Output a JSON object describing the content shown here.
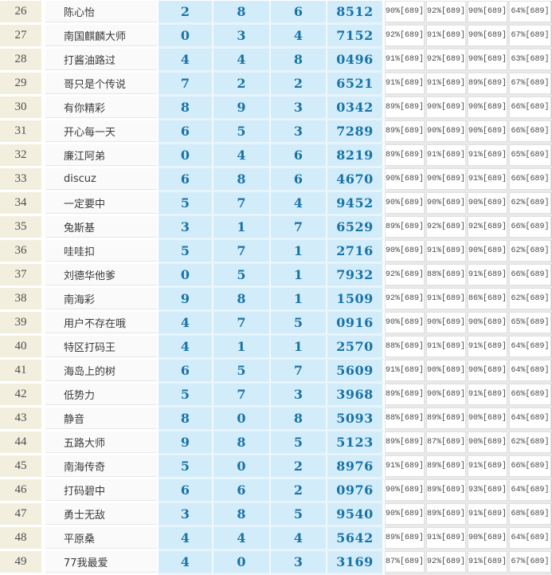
{
  "colors": {
    "accent_blue": "#1873a6",
    "cell_blue": "#d3ecfa",
    "rank_bg": "#f2efdf",
    "pct_text": "#4a4a4a",
    "grid_gray": "#e9e9e9"
  },
  "table": {
    "rows": [
      {
        "rank": "26",
        "name": "陈心怡",
        "nums": [
          "2",
          "8",
          "6"
        ],
        "code": "8512",
        "pcts": [
          "90%[689]",
          "92%[689]",
          "90%[689]",
          "64%[689]"
        ]
      },
      {
        "rank": "27",
        "name": "南国麒麟大师",
        "nums": [
          "0",
          "3",
          "4"
        ],
        "code": "7152",
        "pcts": [
          "92%[689]",
          "91%[689]",
          "90%[689]",
          "67%[689]"
        ]
      },
      {
        "rank": "28",
        "name": "打酱油路过",
        "nums": [
          "4",
          "4",
          "8"
        ],
        "code": "0496",
        "pcts": [
          "91%[689]",
          "92%[689]",
          "90%[689]",
          "63%[689]"
        ]
      },
      {
        "rank": "29",
        "name": "哥只是个传说",
        "nums": [
          "7",
          "2",
          "2"
        ],
        "code": "6521",
        "pcts": [
          "91%[689]",
          "91%[689]",
          "89%[689]",
          "67%[689]"
        ]
      },
      {
        "rank": "30",
        "name": "有你精彩",
        "nums": [
          "8",
          "9",
          "3"
        ],
        "code": "0342",
        "pcts": [
          "89%[689]",
          "90%[689]",
          "90%[689]",
          "66%[689]"
        ]
      },
      {
        "rank": "31",
        "name": "开心每一天",
        "nums": [
          "6",
          "5",
          "3"
        ],
        "code": "7289",
        "pcts": [
          "89%[689]",
          "90%[689]",
          "90%[689]",
          "66%[689]"
        ]
      },
      {
        "rank": "32",
        "name": "廉江阿弟",
        "nums": [
          "0",
          "4",
          "6"
        ],
        "code": "8219",
        "pcts": [
          "89%[689]",
          "91%[689]",
          "91%[689]",
          "65%[689]"
        ]
      },
      {
        "rank": "33",
        "name": "discuz",
        "nums": [
          "6",
          "8",
          "6"
        ],
        "code": "4670",
        "pcts": [
          "90%[689]",
          "90%[689]",
          "91%[689]",
          "66%[689]"
        ]
      },
      {
        "rank": "34",
        "name": "一定要中",
        "nums": [
          "5",
          "7",
          "4"
        ],
        "code": "9452",
        "pcts": [
          "90%[689]",
          "90%[689]",
          "90%[689]",
          "62%[689]"
        ]
      },
      {
        "rank": "35",
        "name": "兔斯基",
        "nums": [
          "3",
          "1",
          "7"
        ],
        "code": "6529",
        "pcts": [
          "89%[689]",
          "92%[689]",
          "92%[689]",
          "66%[689]"
        ]
      },
      {
        "rank": "36",
        "name": "哇哇扣",
        "nums": [
          "5",
          "7",
          "1"
        ],
        "code": "2716",
        "pcts": [
          "90%[689]",
          "91%[689]",
          "90%[689]",
          "62%[689]"
        ]
      },
      {
        "rank": "37",
        "name": "刘德华他爹",
        "nums": [
          "0",
          "5",
          "1"
        ],
        "code": "7932",
        "pcts": [
          "92%[689]",
          "88%[689]",
          "91%[689]",
          "66%[689]"
        ]
      },
      {
        "rank": "38",
        "name": "南海彩",
        "nums": [
          "9",
          "8",
          "1"
        ],
        "code": "1509",
        "pcts": [
          "92%[689]",
          "91%[689]",
          "86%[689]",
          "62%[689]"
        ]
      },
      {
        "rank": "39",
        "name": "用户不存在哦",
        "nums": [
          "4",
          "7",
          "5"
        ],
        "code": "0916",
        "pcts": [
          "90%[689]",
          "90%[689]",
          "90%[689]",
          "65%[689]"
        ]
      },
      {
        "rank": "40",
        "name": "特区打码王",
        "nums": [
          "4",
          "1",
          "1"
        ],
        "code": "2570",
        "pcts": [
          "88%[689]",
          "91%[689]",
          "91%[689]",
          "64%[689]"
        ]
      },
      {
        "rank": "41",
        "name": "海岛上的树",
        "nums": [
          "6",
          "5",
          "7"
        ],
        "code": "5609",
        "pcts": [
          "91%[689]",
          "90%[689]",
          "90%[689]",
          "64%[689]"
        ]
      },
      {
        "rank": "42",
        "name": "低势力",
        "nums": [
          "5",
          "7",
          "3"
        ],
        "code": "3968",
        "pcts": [
          "89%[689]",
          "90%[689]",
          "91%[689]",
          "66%[689]"
        ]
      },
      {
        "rank": "43",
        "name": "静音",
        "nums": [
          "8",
          "0",
          "8"
        ],
        "code": "5093",
        "pcts": [
          "88%[689]",
          "89%[689]",
          "90%[689]",
          "64%[689]"
        ]
      },
      {
        "rank": "44",
        "name": "五路大师",
        "nums": [
          "9",
          "8",
          "5"
        ],
        "code": "5123",
        "pcts": [
          "89%[689]",
          "87%[689]",
          "90%[689]",
          "62%[689]"
        ]
      },
      {
        "rank": "45",
        "name": "南海传奇",
        "nums": [
          "5",
          "0",
          "2"
        ],
        "code": "8976",
        "pcts": [
          "91%[689]",
          "89%[689]",
          "91%[689]",
          "66%[689]"
        ]
      },
      {
        "rank": "46",
        "name": "打码碧中",
        "nums": [
          "6",
          "6",
          "2"
        ],
        "code": "0976",
        "pcts": [
          "90%[689]",
          "89%[689]",
          "93%[689]",
          "64%[689]"
        ]
      },
      {
        "rank": "47",
        "name": "勇士无敌",
        "nums": [
          "3",
          "8",
          "5"
        ],
        "code": "9540",
        "pcts": [
          "90%[689]",
          "89%[689]",
          "91%[689]",
          "68%[689]"
        ]
      },
      {
        "rank": "48",
        "name": "平原桑",
        "nums": [
          "4",
          "4",
          "4"
        ],
        "code": "5642",
        "pcts": [
          "89%[689]",
          "91%[689]",
          "90%[689]",
          "64%[689]"
        ]
      },
      {
        "rank": "49",
        "name": "77我最爱",
        "nums": [
          "4",
          "0",
          "3"
        ],
        "code": "3169",
        "pcts": [
          "87%[689]",
          "92%[689]",
          "91%[689]",
          "67%[689]"
        ]
      }
    ]
  }
}
